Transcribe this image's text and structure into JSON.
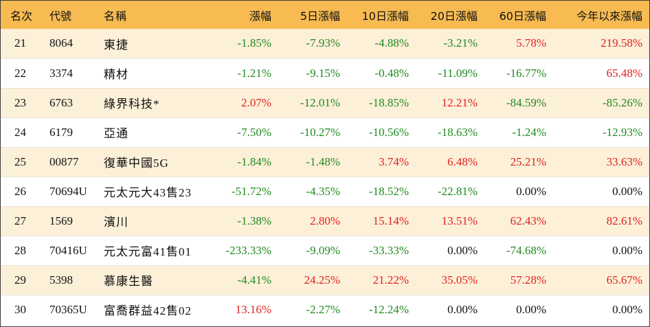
{
  "headers": {
    "rank": "名次",
    "code": "代號",
    "name": "名稱",
    "change": "漲幅",
    "change5": "5日漲幅",
    "change10": "10日漲幅",
    "change20": "20日漲幅",
    "change60": "60日漲幅",
    "ytd": "今年以來漲幅"
  },
  "colors": {
    "negative": "#1f8a1f",
    "positive": "#e0201f",
    "header_bg": "#f7bb52",
    "stripe_bg": "#fdf0d9"
  },
  "rows": [
    {
      "rank": "21",
      "code": "8064",
      "name": "東捷",
      "change": "-1.85%",
      "change5": "-7.93%",
      "change10": "-4.88%",
      "change20": "-3.21%",
      "change60": "5.78%",
      "ytd": "219.58%"
    },
    {
      "rank": "22",
      "code": "3374",
      "name": "精材",
      "change": "-1.21%",
      "change5": "-9.15%",
      "change10": "-0.48%",
      "change20": "-11.09%",
      "change60": "-16.77%",
      "ytd": "65.48%"
    },
    {
      "rank": "23",
      "code": "6763",
      "name": "綠界科技*",
      "change": "2.07%",
      "change5": "-12.01%",
      "change10": "-18.85%",
      "change20": "12.21%",
      "change60": "-84.59%",
      "ytd": "-85.26%"
    },
    {
      "rank": "24",
      "code": "6179",
      "name": "亞通",
      "change": "-7.50%",
      "change5": "-10.27%",
      "change10": "-10.56%",
      "change20": "-18.63%",
      "change60": "-1.24%",
      "ytd": "-12.93%"
    },
    {
      "rank": "25",
      "code": "00877",
      "name": "復華中國5G",
      "change": "-1.84%",
      "change5": "-1.48%",
      "change10": "3.74%",
      "change20": "6.48%",
      "change60": "25.21%",
      "ytd": "33.63%"
    },
    {
      "rank": "26",
      "code": "70694U",
      "name": "元太元大43售23",
      "change": "-51.72%",
      "change5": "-4.35%",
      "change10": "-18.52%",
      "change20": "-22.81%",
      "change60": "0.00%",
      "ytd": "0.00%"
    },
    {
      "rank": "27",
      "code": "1569",
      "name": "濱川",
      "change": "-1.38%",
      "change5": "2.80%",
      "change10": "15.14%",
      "change20": "13.51%",
      "change60": "62.43%",
      "ytd": "82.61%"
    },
    {
      "rank": "28",
      "code": "70416U",
      "name": "元太元富41售01",
      "change": "-233.33%",
      "change5": "-9.09%",
      "change10": "-33.33%",
      "change20": "0.00%",
      "change60": "-74.68%",
      "ytd": "0.00%"
    },
    {
      "rank": "29",
      "code": "5398",
      "name": "慕康生醫",
      "change": "-4.41%",
      "change5": "24.25%",
      "change10": "21.22%",
      "change20": "35.05%",
      "change60": "57.28%",
      "ytd": "65.67%"
    },
    {
      "rank": "30",
      "code": "70365U",
      "name": "富喬群益42售02",
      "change": "13.16%",
      "change5": "-2.27%",
      "change10": "-12.24%",
      "change20": "0.00%",
      "change60": "0.00%",
      "ytd": "0.00%"
    }
  ]
}
